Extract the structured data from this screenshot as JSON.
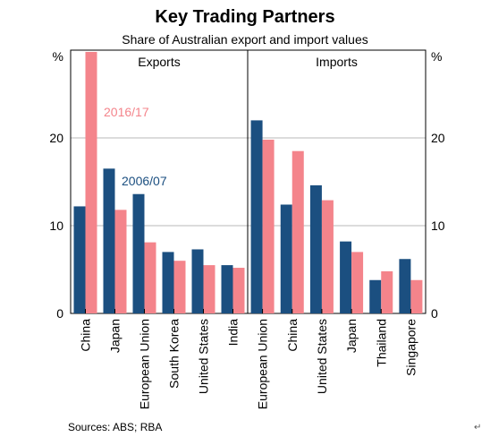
{
  "chart_data": {
    "type": "bar",
    "title": "Key Trading Partners",
    "subtitle": "Share of Australian export and import values",
    "y_unit_left": "%",
    "y_unit_right": "%",
    "ylim": [
      0,
      30
    ],
    "yticks": [
      0,
      10,
      20
    ],
    "grid": true,
    "source": "Sources:   ABS; RBA",
    "legend_style": "in-panel labels",
    "colors": {
      "2006/07": "#1b4f80",
      "2016/17": "#f4848b",
      "grid": "#b8b8b8",
      "frame": "#000000"
    },
    "panels": [
      {
        "name": "Exports",
        "categories": [
          "China",
          "Japan",
          "European Union",
          "South Korea",
          "United States",
          "India"
        ],
        "series": [
          {
            "name": "2006/07",
            "values": [
              12.2,
              16.5,
              13.6,
              7.0,
              7.3,
              5.5
            ]
          },
          {
            "name": "2016/17",
            "values": [
              29.8,
              11.8,
              8.1,
              6.0,
              5.5,
              5.2
            ]
          }
        ]
      },
      {
        "name": "Imports",
        "categories": [
          "European Union",
          "China",
          "United States",
          "Japan",
          "Thailand",
          "Singapore"
        ],
        "series": [
          {
            "name": "2006/07",
            "values": [
              22.0,
              12.4,
              14.6,
              8.2,
              3.8,
              6.2
            ]
          },
          {
            "name": "2016/17",
            "values": [
              19.8,
              18.5,
              12.9,
              7.0,
              4.8,
              3.8
            ]
          }
        ]
      }
    ],
    "annotations": [
      {
        "text": "2016/17",
        "series": "2016/17"
      },
      {
        "text": "2006/07",
        "series": "2006/07"
      }
    ]
  },
  "footer": {
    "return_mark": "↵"
  }
}
